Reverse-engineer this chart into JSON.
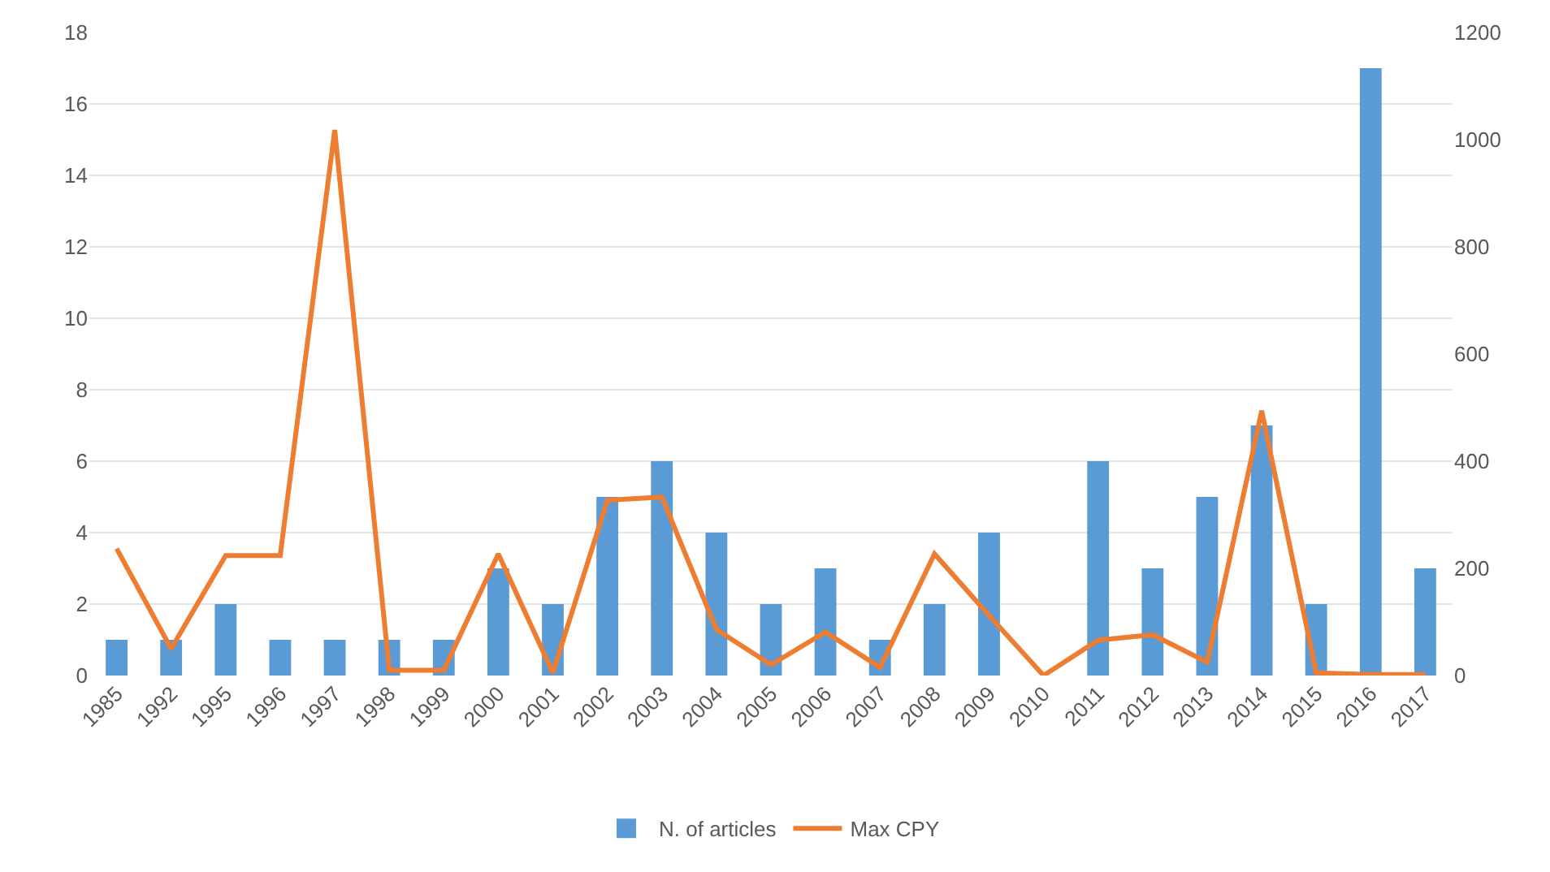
{
  "chart_data": {
    "type": "bar",
    "categories": [
      "1985",
      "1992",
      "1995",
      "1996",
      "1997",
      "1998",
      "1999",
      "2000",
      "2001",
      "2002",
      "2003",
      "2004",
      "2005",
      "2006",
      "2007",
      "2008",
      "2009",
      "2010",
      "2011",
      "2012",
      "2013",
      "2014",
      "2015",
      "2016",
      "2017"
    ],
    "series": [
      {
        "name": "N. of articles",
        "color": "#5b9bd5",
        "values": [
          1,
          1,
          2,
          1,
          1,
          1,
          1,
          3,
          2,
          5,
          6,
          4,
          2,
          3,
          1,
          2,
          4,
          0,
          6,
          3,
          5,
          7,
          2,
          17,
          3
        ]
      },
      {
        "name": "Max CPY",
        "type": "line",
        "axis": "y2",
        "color": "#ed7d31",
        "values": [
          237,
          50,
          224,
          224,
          1018,
          10,
          10,
          227,
          5,
          327,
          333,
          86,
          20,
          81,
          15,
          227,
          112,
          0,
          66,
          76,
          25,
          494,
          5,
          2,
          2
        ]
      }
    ],
    "ylim": [
      0,
      18
    ],
    "yticks": [
      0,
      2,
      4,
      6,
      8,
      10,
      12,
      14,
      16,
      18
    ],
    "y2lim": [
      0,
      1200
    ],
    "y2ticks": [
      0,
      200,
      400,
      600,
      800,
      1000,
      1200
    ],
    "grid": "y",
    "legend": "bottom",
    "marker": "none",
    "line_style": "solid"
  }
}
